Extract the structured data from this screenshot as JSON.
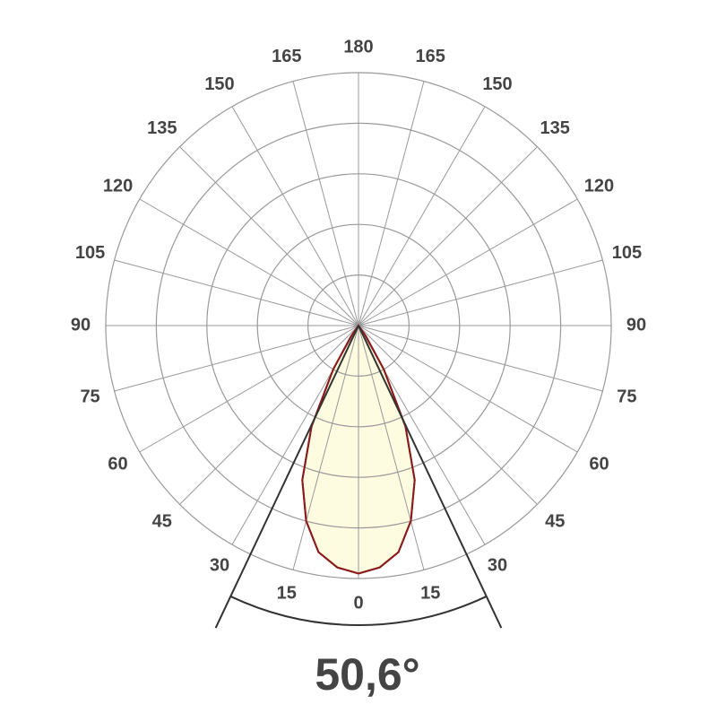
{
  "chart_data": {
    "type": "polar",
    "angles": [
      -40,
      -35,
      -30,
      -25,
      -20,
      -15,
      -10,
      -5,
      0,
      5,
      10,
      15,
      20,
      25,
      30,
      35,
      40
    ],
    "values": [
      0,
      5,
      20,
      44,
      65,
      80,
      91,
      96,
      98,
      96,
      91,
      80,
      65,
      44,
      20,
      5,
      0
    ],
    "color": "#8b1a1a",
    "fill": "#fdfbe0",
    "rlim": [
      0,
      100
    ],
    "rticks": [
      20,
      40,
      60,
      80,
      100
    ],
    "angle_ticks": [
      0,
      15,
      30,
      45,
      60,
      75,
      90,
      105,
      120,
      135,
      150,
      165,
      180
    ],
    "grid": true,
    "beam_angle": {
      "value": 50.6,
      "label": "50,6°"
    }
  }
}
